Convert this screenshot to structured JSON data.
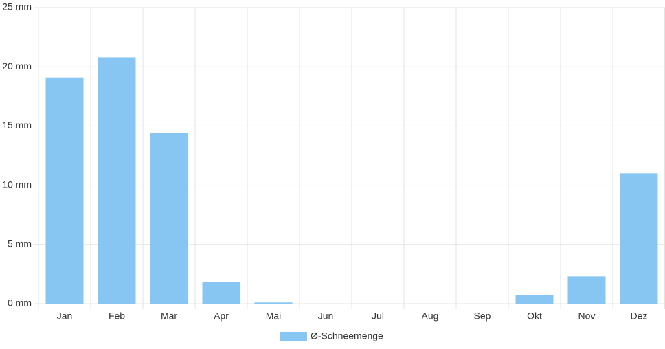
{
  "chart_data": {
    "type": "bar",
    "categories": [
      "Jan",
      "Feb",
      "Mär",
      "Apr",
      "Mai",
      "Jun",
      "Jul",
      "Aug",
      "Sep",
      "Okt",
      "Nov",
      "Dez"
    ],
    "series": [
      {
        "name": "Ø-Schneemenge",
        "color": "#87c6f2",
        "values": [
          19.1,
          20.8,
          14.4,
          1.8,
          0.1,
          0,
          0,
          0,
          0,
          0.7,
          2.3,
          11.0
        ]
      }
    ],
    "ylim": [
      0,
      25
    ],
    "yticks": [
      {
        "value": 0,
        "label": "0 mm"
      },
      {
        "value": 5,
        "label": "5 mm"
      },
      {
        "value": 10,
        "label": "10 mm"
      },
      {
        "value": 15,
        "label": "15 mm"
      },
      {
        "value": 20,
        "label": "20 mm"
      },
      {
        "value": 25,
        "label": "25 mm"
      }
    ],
    "grid": true,
    "legend": "bottom"
  }
}
